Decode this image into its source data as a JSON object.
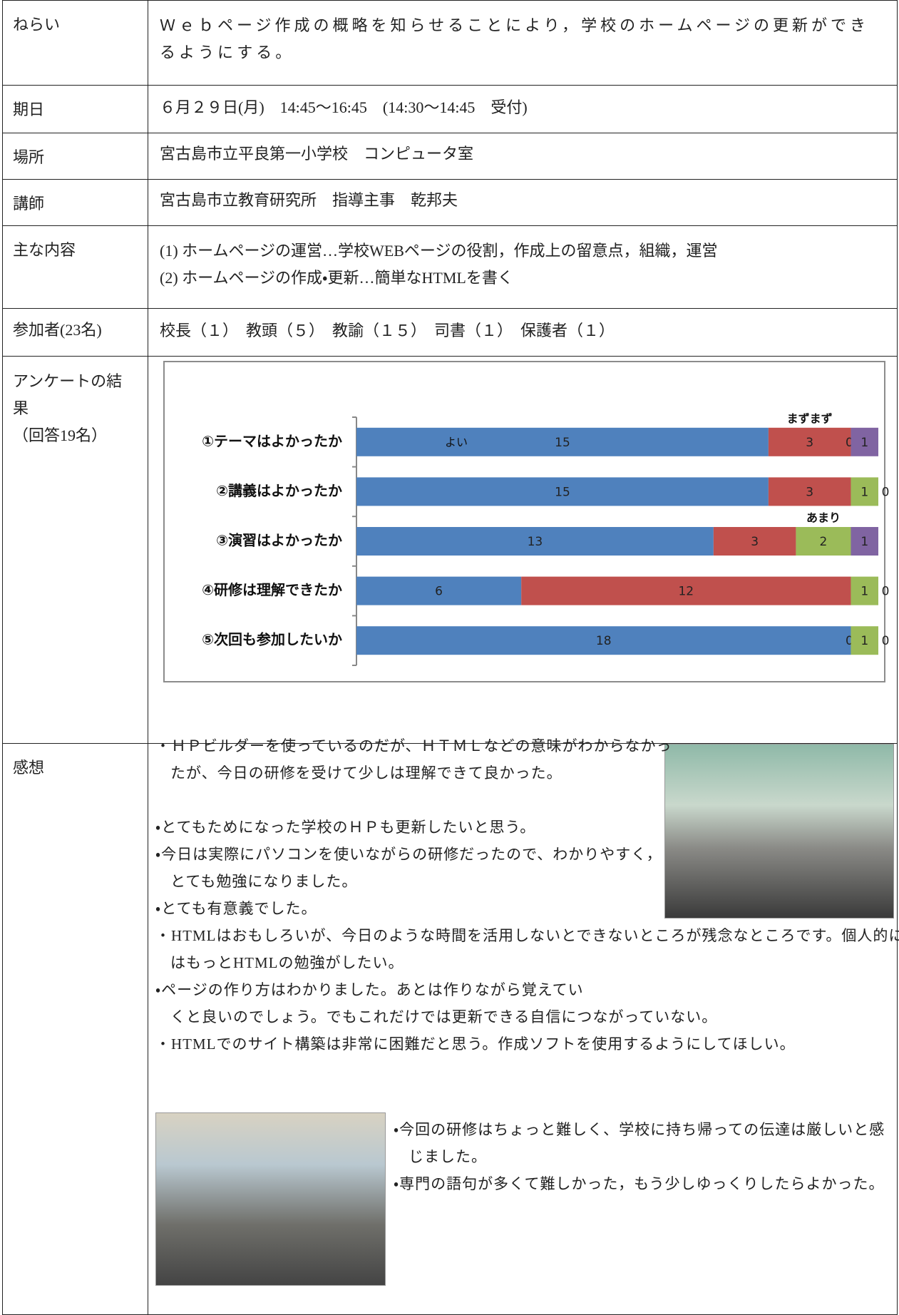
{
  "rows": [
    {
      "label": "ねらい",
      "lines": [
        "Ｗｅｂページ作成の概略を知らせることにより，学校のホームページの更新ができるようにする。"
      ]
    },
    {
      "label": "期日",
      "lines": [
        "６月２９日(月)　14:45～16:45　(14:30～14:45　受付)"
      ]
    },
    {
      "label": "場所",
      "lines": [
        "宮古島市立平良第一小学校　コンピュータ室"
      ]
    },
    {
      "label": "講師",
      "lines": [
        "宮古島市立教育研究所　指導主事　乾邦夫"
      ]
    },
    {
      "label": "主な内容",
      "lines": [
        "(1) ホームページの運営…学校WEBページの役割，作成上の留意点，組織，運営",
        "(2) ホームページの作成・更新…簡単なHTMLを書く"
      ]
    },
    {
      "label": "参加者(23名)",
      "lines": [
        "校長（１）　教頭（５）　教諭（１５）　司書（１）　保護者（１）"
      ]
    }
  ],
  "survey": {
    "label": "アンケートの結果",
    "note": "（回答19名）"
  },
  "chart_data": {
    "type": "stacked-bar-horizontal",
    "categories": [
      "①テーマはよかったか",
      "②講義はよかったか",
      "③演習はよかったか",
      "④研修は理解できたか",
      "⑤次回も参加したいか"
    ],
    "series": [
      {
        "name": "よい",
        "color": "#4f81bd",
        "values": [
          15,
          15,
          13,
          6,
          18
        ]
      },
      {
        "name": "まずまず",
        "color": "#c0504d",
        "values": [
          3,
          3,
          3,
          12,
          0
        ]
      },
      {
        "name": "あまり",
        "color": "#9bbb59",
        "values": [
          0,
          1,
          2,
          1,
          1
        ]
      },
      {
        "color": "#8064a2",
        "values": [
          1,
          0,
          1,
          0,
          0
        ]
      }
    ],
    "xlim": [
      0,
      19
    ]
  },
  "impressions": {
    "label": "感想",
    "comments": [
      "・ＨＰビルダーを使っているのだが、ＨＴＭＬなどの意味がわからなかったが、今日の研修を受けて少しは理解できて良かった。",
      "・とてもためになった学校のＨＰも更新したいと思う。",
      "・今日は実際にパソコンを使いながらの研修だったので、わかりやすく，とても勉強になりました。",
      "・とても有意義でした。",
      "・HTMLはおもしろいが、今日のような時間を活用しないとできないところが残念なところです。個人的にはもっとHTMLの勉強がしたい。",
      "・ページの作り方はわかりました。あとは作りながら覚えてい\nくと良いのでしょう。でもこれだけでは更新できる自信につながっていない。",
      "・HTMLでのサイト構築は非常に困難だと思う。作成ソフトを使用するようにしてほしい。",
      "・今回の研修はちょっと難しく、学校に持ち帰っての伝達は厳しいと感じました。",
      "・専門の語句が多くて難しかった，もう少しゆっくりしたらよかった。"
    ]
  }
}
